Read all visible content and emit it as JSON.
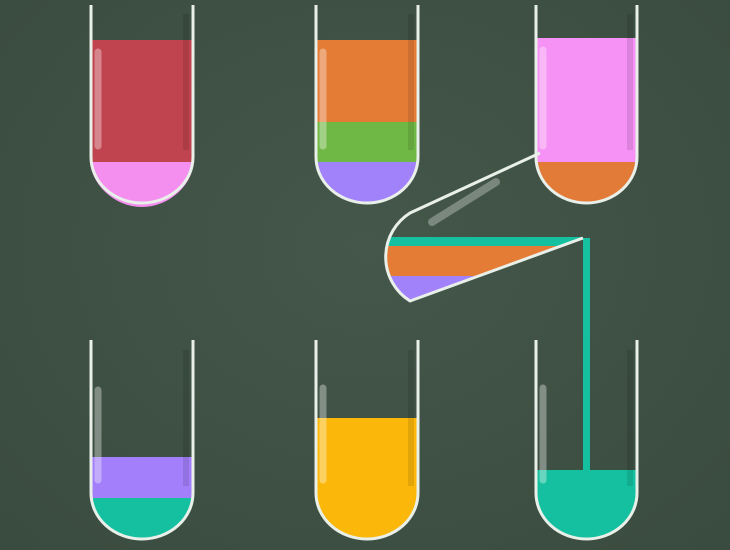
{
  "game": {
    "type": "water-sort-puzzle",
    "tubes": [
      {
        "name": "tube-1",
        "layers_bottom_to_top": [
          {
            "color": "#f48ff0",
            "amount": 1
          },
          {
            "color": "#c0444f",
            "amount": 3
          }
        ]
      },
      {
        "name": "tube-2",
        "layers_bottom_to_top": [
          {
            "color": "#a182fb",
            "amount": 1
          },
          {
            "color": "#70b845",
            "amount": 1
          },
          {
            "color": "#e47c36",
            "amount": 2
          }
        ]
      },
      {
        "name": "tube-3",
        "layers_bottom_to_top": [
          {
            "color": "#e27a38",
            "amount": 1
          },
          {
            "color": "#f691f5",
            "amount": 3
          }
        ]
      },
      {
        "name": "tube-4",
        "layers_bottom_to_top": [
          {
            "color": "#15c0a0",
            "amount": 1
          },
          {
            "color": "#a37ffb",
            "amount": 1
          }
        ]
      },
      {
        "name": "tube-5",
        "layers_bottom_to_top": [
          {
            "color": "#fbb80b",
            "amount": 3
          }
        ]
      },
      {
        "name": "tube-6",
        "layers_bottom_to_top": [
          {
            "color": "#15c0a0",
            "amount": 1
          }
        ]
      }
    ],
    "pouring_tube": {
      "name": "tilted-tube",
      "layers_bottom_to_top": [
        {
          "color": "#a182fb",
          "amount": 1
        },
        {
          "color": "#e47c36",
          "amount": 1
        },
        {
          "color": "#e47c36",
          "amount": 1
        },
        {
          "color": "#15c0a0",
          "amount": 1
        }
      ]
    },
    "pour_stream": {
      "color": "#15c0a0",
      "target": "tube-6"
    },
    "colors": {
      "background": "#3f5144",
      "glass_outline": "#e9efe9",
      "glass_highlight": "#9fb0a5"
    }
  }
}
